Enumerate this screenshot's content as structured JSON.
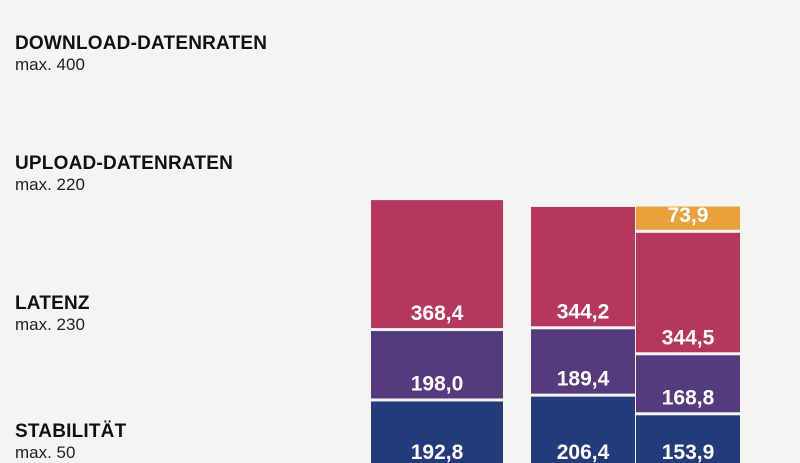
{
  "categories": [
    {
      "name": "DOWNLOAD-DATENRATEN",
      "max": "max. 400"
    },
    {
      "name": "UPLOAD-DATENRATEN",
      "max": "max. 220"
    },
    {
      "name": "LATENZ",
      "max": "max. 230"
    },
    {
      "name": "STABILITÄT",
      "max": "max. 50"
    }
  ],
  "chart_data": {
    "type": "bar",
    "stacked": true,
    "categories": [
      "",
      "",
      ""
    ],
    "series": [
      {
        "name": "STABILITÄT",
        "color": "#233b7a",
        "values": [
          192.8,
          206.4,
          153.9
        ],
        "labels": [
          "192,8",
          "206,4",
          "153,9"
        ]
      },
      {
        "name": "LATENZ",
        "color": "#553a7e",
        "values": [
          198.0,
          189.4,
          168.8
        ],
        "labels": [
          "198,0",
          "189,4",
          "168,8"
        ]
      },
      {
        "name": "UPLOAD-DATENRATEN",
        "color": "#b5375c",
        "values": [
          368.4,
          344.2,
          344.5
        ],
        "labels": [
          "368,4",
          "344,2",
          "344,5"
        ]
      },
      {
        "name": "DOWNLOAD-DATENRATEN",
        "color": "#e9a23b",
        "values": [
          null,
          null,
          73.9
        ],
        "labels": [
          "",
          "",
          "73,9"
        ]
      }
    ]
  }
}
